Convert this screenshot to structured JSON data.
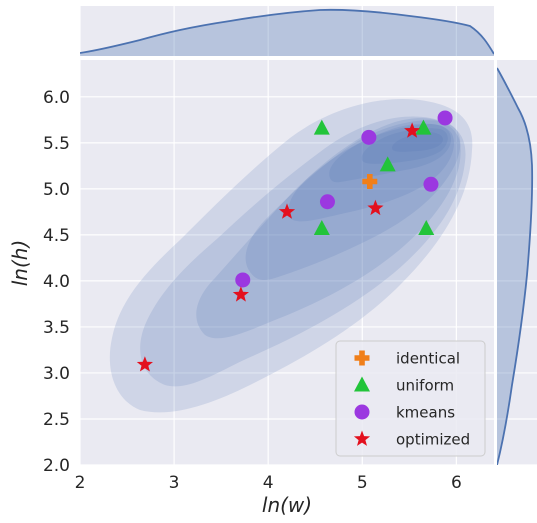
{
  "chart_data": {
    "type": "scatter",
    "title": "",
    "xlabel": "ln(w)",
    "ylabel": "ln(h)",
    "xlim": [
      2,
      6.4
    ],
    "ylim": [
      2.0,
      6.4
    ],
    "xticks": [
      "2",
      "3",
      "4",
      "5",
      "6"
    ],
    "yticks": [
      "2.0",
      "2.5",
      "3.0",
      "3.5",
      "4.0",
      "4.5",
      "5.0",
      "5.5",
      "6.0"
    ],
    "background": "#eaeaf2",
    "density_color": "#4c72b0",
    "legend_position": "lower-right",
    "series": [
      {
        "name": "identical",
        "marker": "plus",
        "color": "#f07f1a",
        "points": [
          [
            5.08,
            5.08
          ]
        ]
      },
      {
        "name": "uniform",
        "marker": "triangle",
        "color": "#22c43a",
        "points": [
          [
            4.57,
            5.66
          ],
          [
            5.65,
            5.66
          ],
          [
            5.27,
            5.26
          ],
          [
            4.57,
            4.57
          ],
          [
            5.68,
            4.57
          ]
        ]
      },
      {
        "name": "kmeans",
        "marker": "circle",
        "color": "#9b38e0",
        "points": [
          [
            5.88,
            5.77
          ],
          [
            5.07,
            5.56
          ],
          [
            5.73,
            5.05
          ],
          [
            4.63,
            4.86
          ],
          [
            3.73,
            4.01
          ]
        ]
      },
      {
        "name": "optimized",
        "marker": "star",
        "color": "#e3101e",
        "points": [
          [
            5.53,
            5.63
          ],
          [
            5.14,
            4.79
          ],
          [
            4.2,
            4.75
          ],
          [
            3.71,
            3.85
          ],
          [
            2.69,
            3.09
          ]
        ]
      }
    ]
  }
}
